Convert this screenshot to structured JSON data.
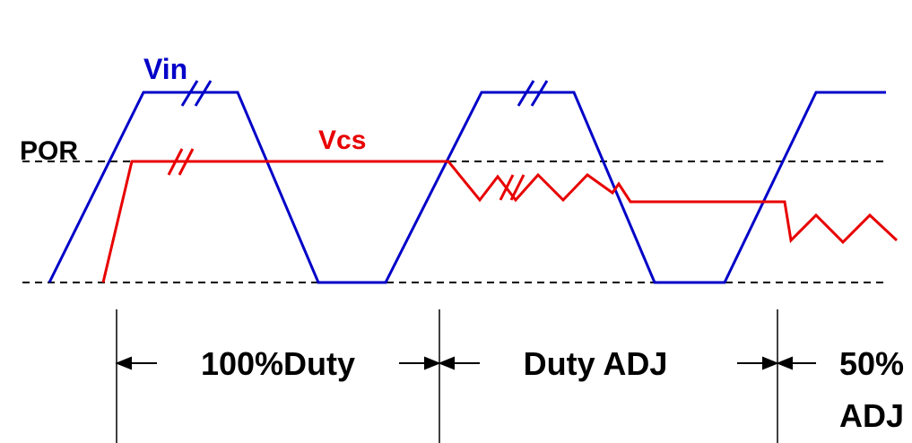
{
  "signals": {
    "vin": "Vin",
    "vcs": "Vcs",
    "por": "POR"
  },
  "phases": [
    {
      "label": "100%Duty"
    },
    {
      "label": "Duty ADJ"
    },
    {
      "label_lines": [
        "50%",
        "ADJ"
      ]
    }
  ]
}
